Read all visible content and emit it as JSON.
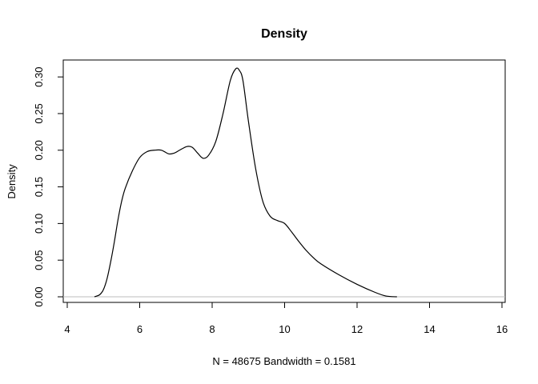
{
  "chart_data": {
    "type": "line",
    "title": "Density",
    "xlabel": "N = 48675   Bandwidth = 0.1581",
    "ylabel": "Density",
    "xlim": [
      4,
      16
    ],
    "ylim": [
      0,
      0.31
    ],
    "x_ticks": [
      "4",
      "6",
      "8",
      "10",
      "12",
      "14",
      "16"
    ],
    "y_ticks": [
      "0.00",
      "0.05",
      "0.10",
      "0.15",
      "0.20",
      "0.25",
      "0.30"
    ],
    "baseline": 0,
    "grid": false,
    "series": [
      {
        "x": [
          4.75,
          4.9,
          5.0,
          5.1,
          5.2,
          5.3,
          5.4,
          5.5,
          5.6,
          5.8,
          6.0,
          6.2,
          6.4,
          6.6,
          6.8,
          6.95,
          7.1,
          7.3,
          7.45,
          7.6,
          7.75,
          7.9,
          8.1,
          8.3,
          8.5,
          8.65,
          8.75,
          8.85,
          9.0,
          9.2,
          9.4,
          9.6,
          9.8,
          10.0,
          10.2,
          10.4,
          10.6,
          10.8,
          11.0,
          11.5,
          12.0,
          12.5,
          12.8,
          13.1
        ],
        "values": [
          0.0,
          0.003,
          0.01,
          0.025,
          0.048,
          0.075,
          0.105,
          0.13,
          0.148,
          0.172,
          0.19,
          0.198,
          0.2,
          0.2,
          0.195,
          0.196,
          0.2,
          0.205,
          0.204,
          0.196,
          0.189,
          0.193,
          0.212,
          0.25,
          0.295,
          0.311,
          0.309,
          0.295,
          0.24,
          0.175,
          0.13,
          0.11,
          0.104,
          0.1,
          0.088,
          0.075,
          0.063,
          0.053,
          0.045,
          0.03,
          0.017,
          0.006,
          0.001,
          0.0
        ]
      }
    ]
  }
}
